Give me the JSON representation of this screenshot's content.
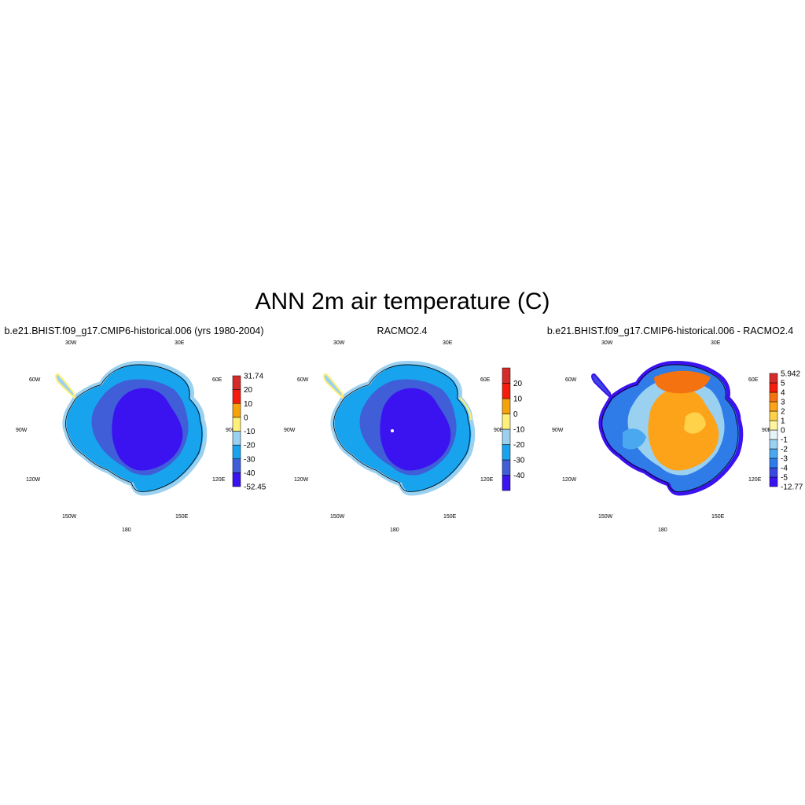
{
  "title": "ANN 2m air temperature (C)",
  "panels": [
    {
      "title": "b.e21.BHIST.f09_g17.CMIP6-historical.006 (yrs 1980-2004)",
      "colorbar": {
        "colors": [
          "#3b12f0",
          "#3f5ed8",
          "#17a3ee",
          "#9ad0f0",
          "#fff07a",
          "#f8a20a",
          "#f51c0c",
          "#d62b2b"
        ],
        "labels": [
          "-52.45",
          "-40",
          "-30",
          "-20",
          "-10",
          "0",
          "10",
          "20",
          "31.74"
        ]
      }
    },
    {
      "title": "RACMO2.4",
      "colorbar": {
        "colors": [
          "#3b12f0",
          "#3f5ed8",
          "#17a3ee",
          "#9ad0f0",
          "#fff07a",
          "#f8a20a",
          "#f51c0c",
          "#d62b2b"
        ],
        "labels": [
          "",
          "-40",
          "-30",
          "-20",
          "-10",
          "0",
          "10",
          "20",
          ""
        ]
      }
    },
    {
      "title": "b.e21.BHIST.f09_g17.CMIP6-historical.006 - RACMO2.4",
      "colorbar": {
        "colors": [
          "#3b12f0",
          "#3a48e0",
          "#2f7be8",
          "#4aa8f0",
          "#9ad0f0",
          "#e6f4fa",
          "#fdf5a0",
          "#ffd24a",
          "#fca31a",
          "#f57210",
          "#f51c0c",
          "#d62b2b"
        ],
        "labels": [
          "-12.77",
          "-5",
          "-4",
          "-3",
          "-2",
          "-1",
          "0",
          "1",
          "2",
          "3",
          "4",
          "5",
          "5.942"
        ]
      }
    }
  ],
  "map_labels": {
    "lon_30w": "30W",
    "lon_30e": "30E",
    "lon_60w": "60W",
    "lon_60e": "60E",
    "lon_90w": "90W",
    "lon_90e": "90E",
    "lon_120w": "120W",
    "lon_120e": "120E",
    "lon_150w": "150W",
    "lon_150e": "150E",
    "lon_180": "180"
  }
}
